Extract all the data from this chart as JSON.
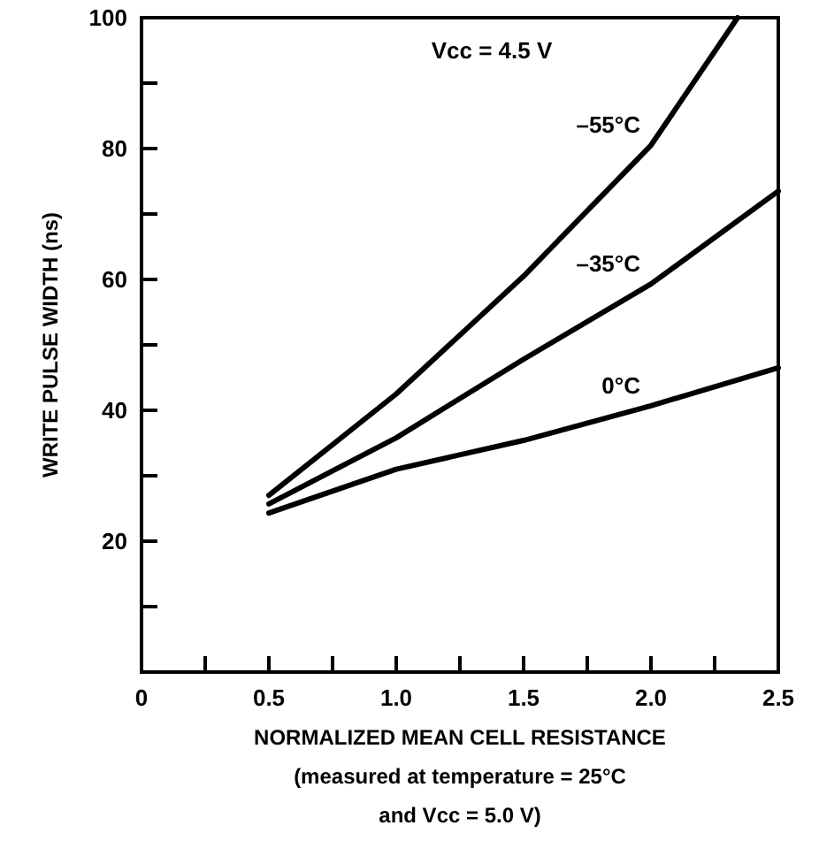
{
  "chart_data": {
    "type": "line",
    "xlabel": "NORMALIZED MEAN CELL RESISTANCE\n(measured at temperature = 25°C\nand Vcc = 5.0 V)",
    "ylabel": "WRITE PULSE WIDTH (ns)",
    "annotations": [
      "Vcc = 4.5 V"
    ],
    "series": [
      {
        "name": "–55°C",
        "color": "#000000",
        "x": [
          0.5,
          1.0,
          1.5,
          2.0,
          2.34
        ],
        "values": [
          27,
          42.5,
          60.5,
          80.5,
          100
        ]
      },
      {
        "name": "–35°C",
        "color": "#000000",
        "x": [
          0.5,
          1.0,
          1.5,
          2.0,
          2.5
        ],
        "values": [
          25.7,
          35.8,
          47.8,
          59.3,
          73.5
        ]
      },
      {
        "name": "0°C",
        "color": "#000000",
        "x": [
          0.5,
          1.0,
          1.5,
          2.0,
          2.5
        ],
        "values": [
          24.3,
          31,
          35.4,
          40.7,
          46.5
        ]
      }
    ],
    "xlim": [
      0,
      2.5
    ],
    "xticks": [
      0,
      {
        "value": 0.25,
        "label": null
      },
      0.5,
      {
        "value": 0.75,
        "label": null
      },
      {
        "value": 1,
        "label": "1.0"
      },
      {
        "value": 1.25,
        "label": null
      },
      1.5,
      {
        "value": 1.75,
        "label": null
      },
      {
        "value": 2,
        "label": "2.0"
      },
      {
        "value": 2.25,
        "label": null
      },
      2.5
    ],
    "ylim": [
      0,
      100
    ],
    "yticks": [
      {
        "value": 0,
        "label": null
      },
      {
        "value": 10,
        "label": null
      },
      20,
      {
        "value": 30,
        "label": null
      },
      40,
      {
        "value": 50,
        "label": null
      },
      60,
      {
        "value": 70,
        "label": null
      },
      80,
      {
        "value": 90,
        "label": null
      },
      100
    ],
    "grid": false,
    "legend": false,
    "marker": "none",
    "line_style": "solid"
  }
}
